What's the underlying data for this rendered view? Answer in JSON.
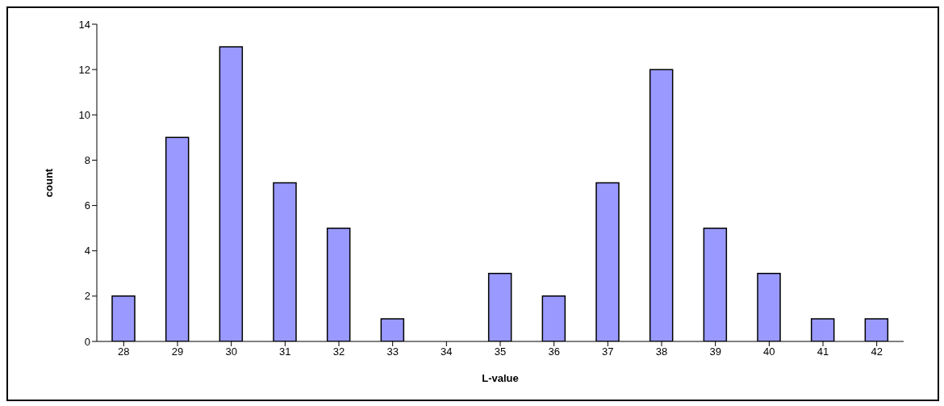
{
  "chart_data": {
    "type": "bar",
    "xlabel": "L-value",
    "ylabel": "count",
    "categories": [
      "28",
      "29",
      "30",
      "31",
      "32",
      "33",
      "34",
      "35",
      "36",
      "37",
      "38",
      "39",
      "40",
      "41",
      "42"
    ],
    "values": [
      2,
      9,
      13,
      7,
      5,
      1,
      0,
      3,
      2,
      7,
      12,
      5,
      3,
      1,
      1
    ],
    "color": "#9999ff",
    "ylim": [
      0,
      14
    ],
    "yticks": [
      0,
      2,
      4,
      6,
      8,
      10,
      12,
      14
    ],
    "grid": false
  }
}
